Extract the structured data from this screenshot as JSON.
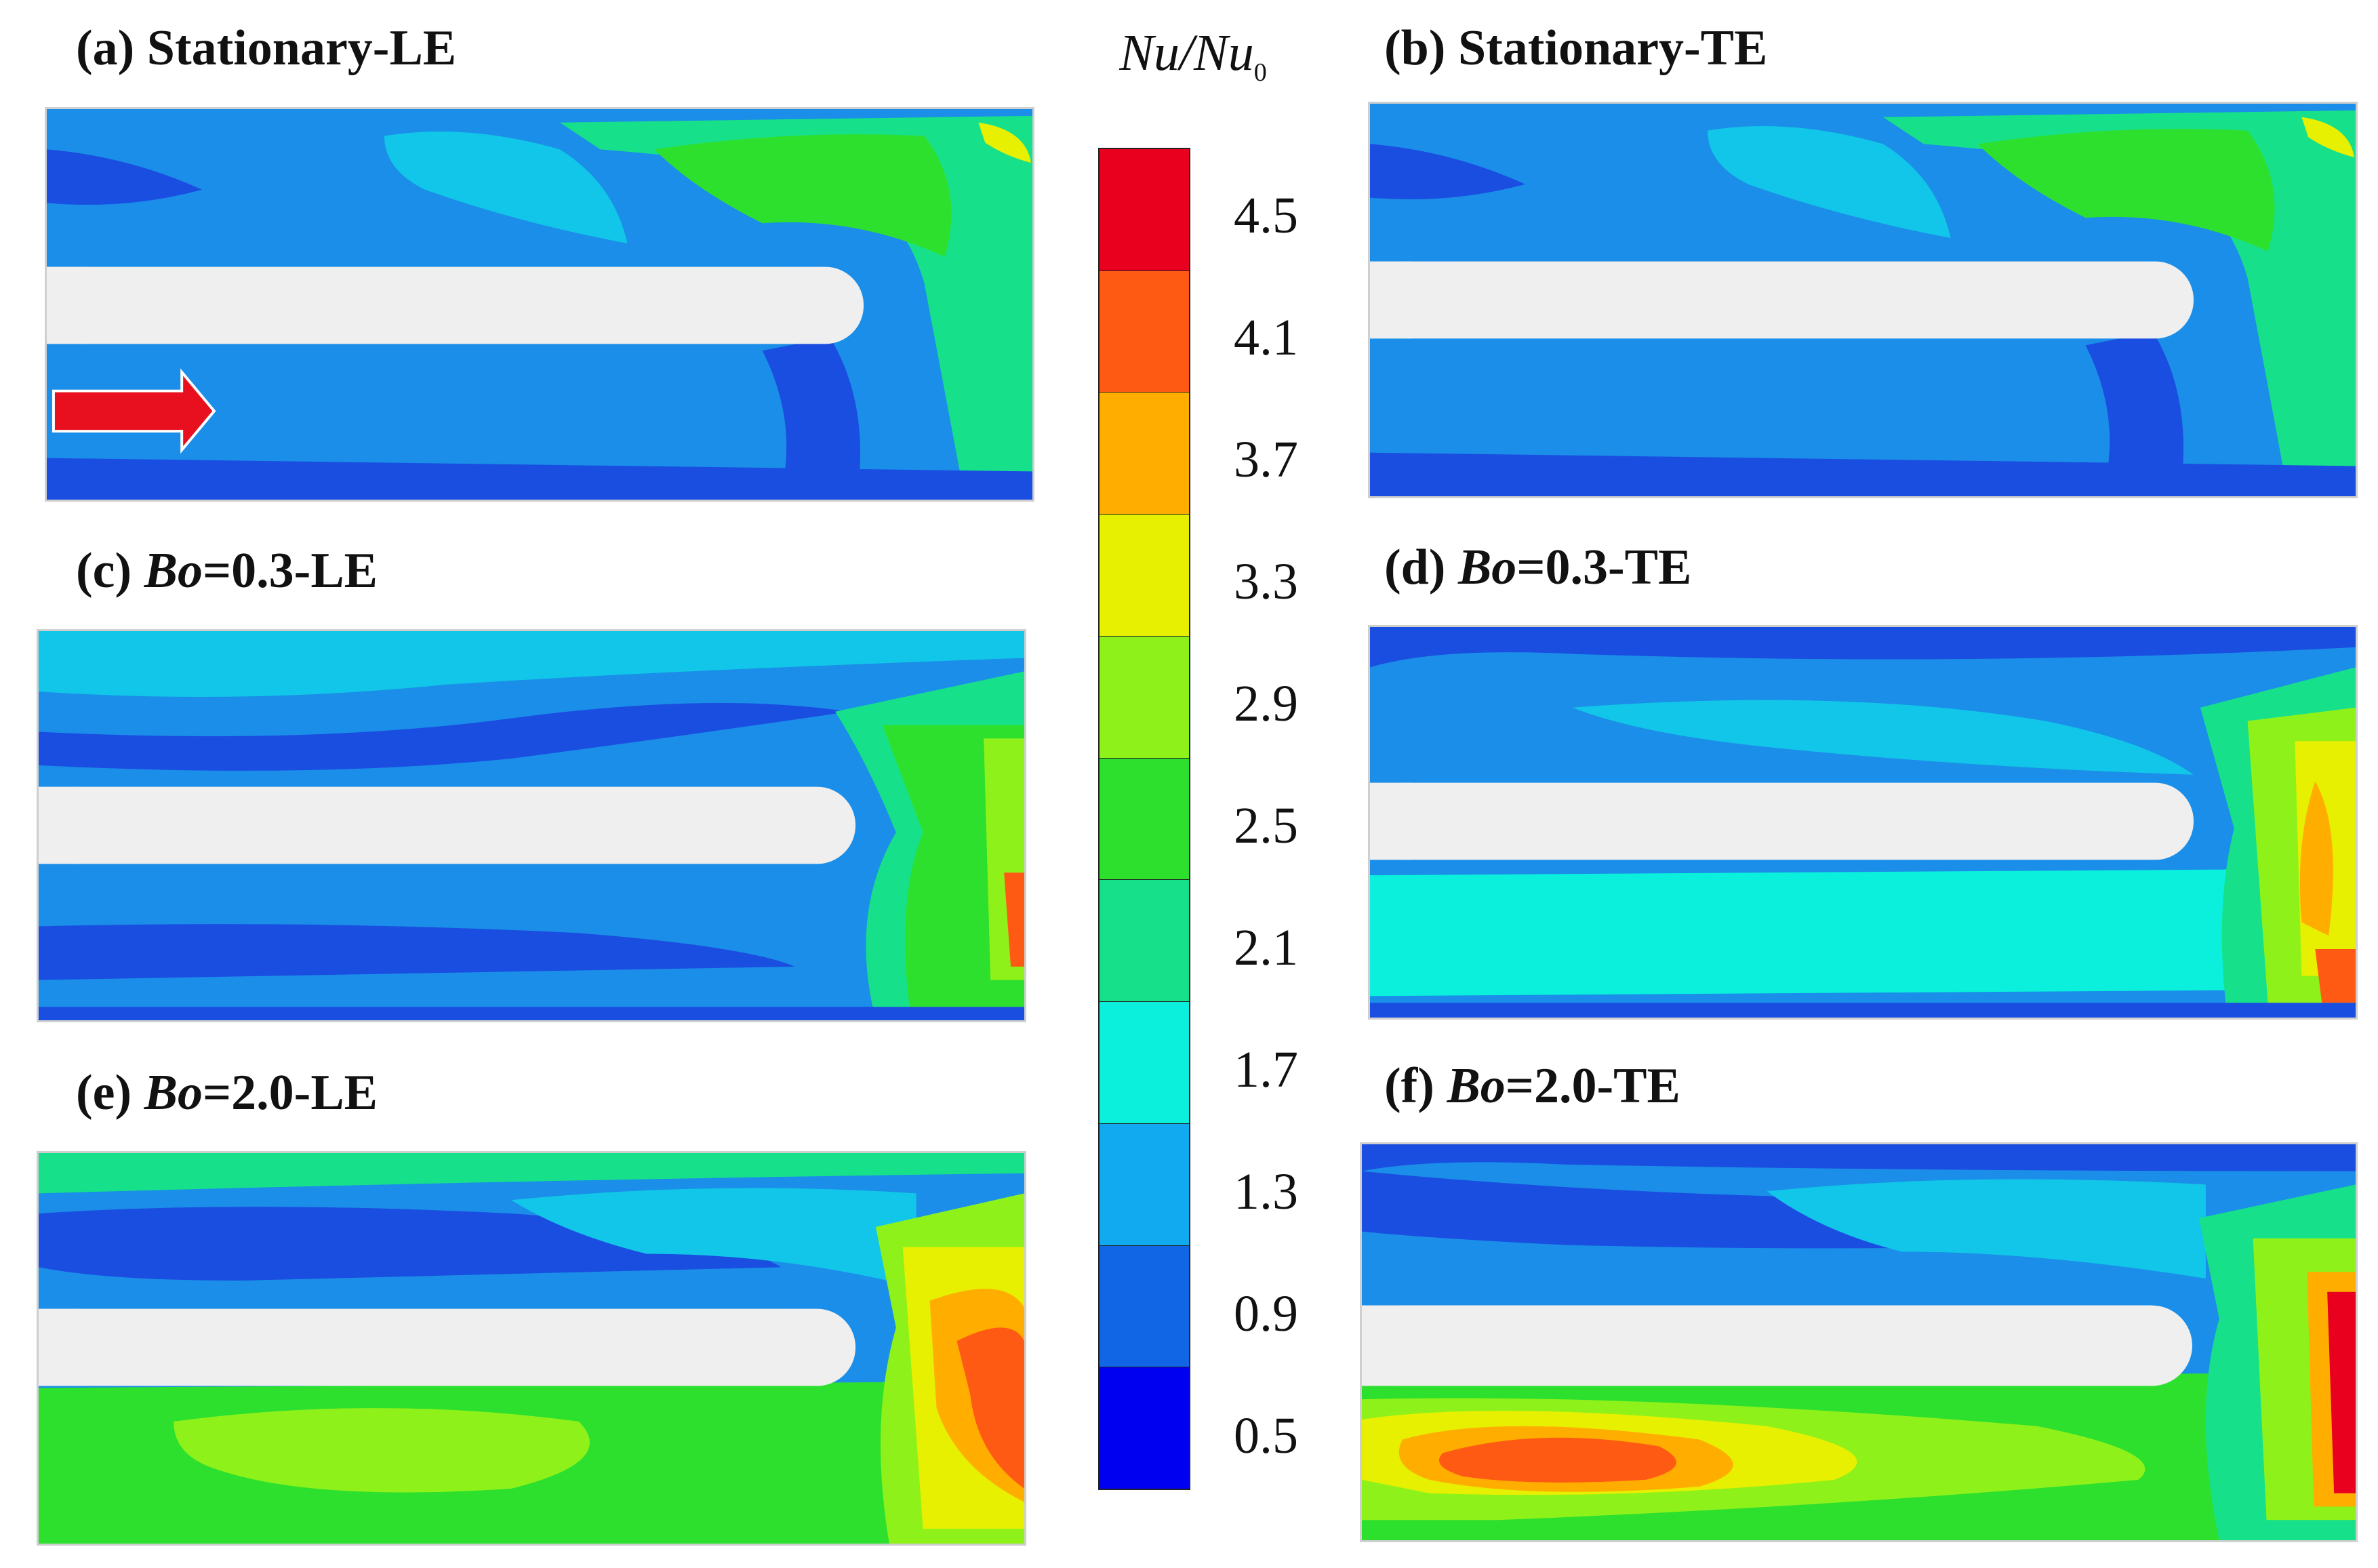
{
  "panels": [
    {
      "id": "a",
      "label": "(a)",
      "prefix": "",
      "bo": "",
      "title": "Stationary-LE"
    },
    {
      "id": "b",
      "label": "(b)",
      "prefix": "",
      "bo": "",
      "title": "Stationary-TE"
    },
    {
      "id": "c",
      "label": "(c)",
      "prefix": "Bo",
      "bo": "=0.3",
      "title": "-LE"
    },
    {
      "id": "d",
      "label": "(d)",
      "prefix": "Bo",
      "bo": "=0.3",
      "title": "-TE"
    },
    {
      "id": "e",
      "label": "(e)",
      "prefix": "Bo",
      "bo": "=2.0",
      "title": "-LE"
    },
    {
      "id": "f",
      "label": "(f)",
      "prefix": "Bo",
      "bo": "=2.0",
      "title": "-TE"
    }
  ],
  "colorbar": {
    "title_main": "Nu/Nu",
    "title_sub": "0",
    "ticks": [
      "4.5",
      "4.1",
      "3.7",
      "3.3",
      "2.9",
      "2.5",
      "2.1",
      "1.7",
      "1.3",
      "0.9",
      "0.5"
    ],
    "colors": [
      "#e8001e",
      "#ff5a14",
      "#ffae00",
      "#e6f000",
      "#8ef21a",
      "#2ee02e",
      "#17e08a",
      "#0af0dc",
      "#11aaf0",
      "#1166e6",
      "#0000f0"
    ]
  },
  "flow_direction": "right",
  "colors": {
    "channel_base": "#1a8ee8",
    "low": "#1a4ee0",
    "mid": "#17e08a",
    "high": "#ff5a14",
    "divider": "#efefef",
    "arrow": "#e8101e"
  }
}
